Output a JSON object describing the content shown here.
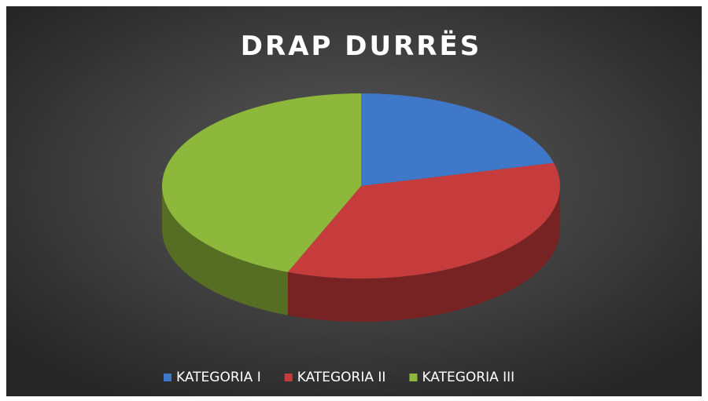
{
  "chart_data": {
    "type": "pie3d",
    "title": "DRAP DURRËS",
    "categories": [
      "KATEGORIA I",
      "KATEGORIA II",
      "KATEGORIA III"
    ],
    "values": [
      21,
      35,
      44
    ],
    "colors": [
      "#3f78c9",
      "#c63b3b",
      "#8db83c"
    ],
    "legend": "bottom"
  }
}
